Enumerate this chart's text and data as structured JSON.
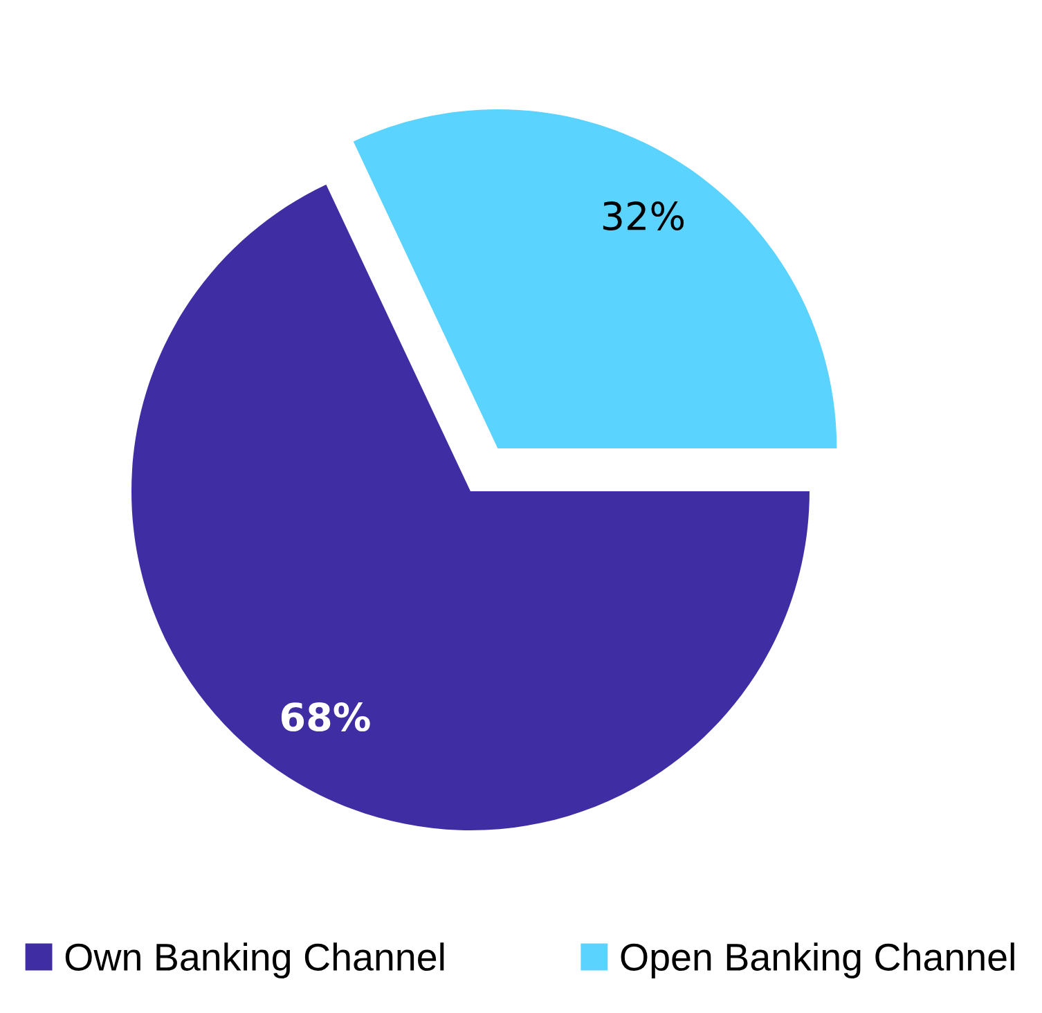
{
  "chart_data": {
    "type": "pie",
    "categories": [
      "Own Banking Channel",
      "Open Banking Channel"
    ],
    "values": [
      68,
      32
    ],
    "colors": [
      "#3f2ea3",
      "#5bd3ff"
    ],
    "value_labels": [
      "68%",
      "32%"
    ],
    "legend": "bottom"
  }
}
